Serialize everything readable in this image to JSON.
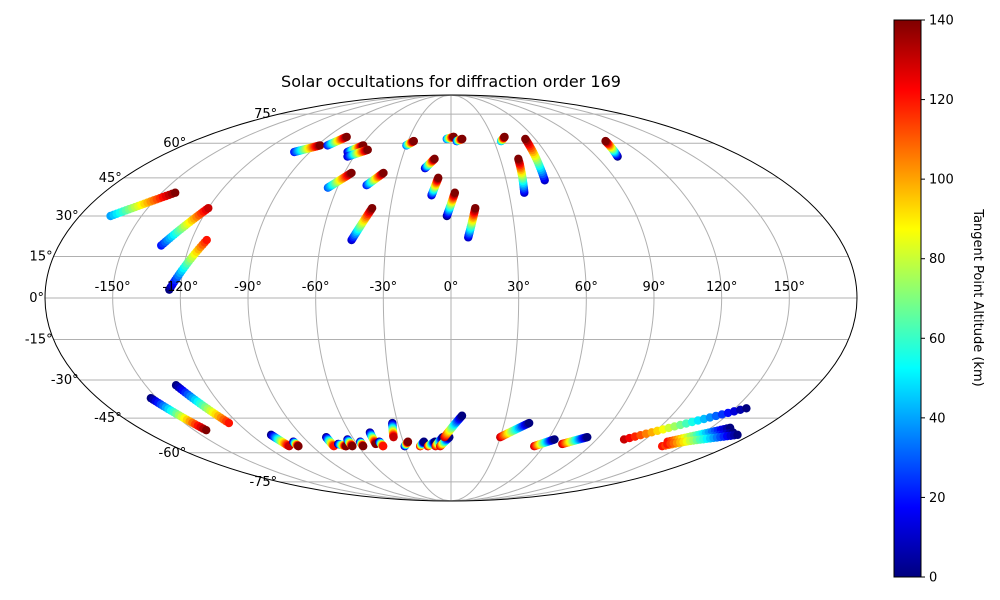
{
  "chart_data": {
    "type": "scatter",
    "projection": "mollweide",
    "title": "Solar occultations for diffraction order 169",
    "longitude_ticks": [
      "-150°",
      "-120°",
      "-90°",
      "-60°",
      "-30°",
      "0°",
      "30°",
      "60°",
      "90°",
      "120°",
      "150°"
    ],
    "latitude_ticks": [
      "75°",
      "60°",
      "45°",
      "30°",
      "15°",
      "0°",
      "-15°",
      "-30°",
      "-45°",
      "-60°",
      "-75°"
    ],
    "grid": true,
    "colorbar": {
      "label": "Tangent Point Altitude (km)",
      "colormap": "jet",
      "min": 0,
      "max": 140,
      "ticks": [
        "0",
        "20",
        "40",
        "60",
        "80",
        "100",
        "120",
        "140"
      ]
    },
    "series": [
      {
        "name": "occultation tracks",
        "tracks": [
          {
            "start": [
              -165,
              30
            ],
            "end": [
              -143,
              39
            ],
            "alt_start": 40,
            "alt_end": 140
          },
          {
            "start": [
              -133,
              19
            ],
            "end": [
              -120,
              33
            ],
            "alt_start": 20,
            "alt_end": 130
          },
          {
            "start": [
              -125,
              3
            ],
            "end": [
              -113,
              21
            ],
            "alt_start": 0,
            "alt_end": 120
          },
          {
            "start": [
              -100,
              56
            ],
            "end": [
              -88,
              59
            ],
            "alt_start": 20,
            "alt_end": 140
          },
          {
            "start": [
              -83,
              59
            ],
            "end": [
              -76,
              63
            ],
            "alt_start": 20,
            "alt_end": 140
          },
          {
            "start": [
              -66,
              56
            ],
            "end": [
              -59,
              59
            ],
            "alt_start": 10,
            "alt_end": 140
          },
          {
            "start": [
              -64,
              54
            ],
            "end": [
              -54,
              57
            ],
            "alt_start": 10,
            "alt_end": 140
          },
          {
            "start": [
              -65,
              41
            ],
            "end": [
              -56,
              47
            ],
            "alt_start": 30,
            "alt_end": 140
          },
          {
            "start": [
              -45,
              42
            ],
            "end": [
              -38,
              47
            ],
            "alt_start": 20,
            "alt_end": 140
          },
          {
            "start": [
              -46,
              21
            ],
            "end": [
              -39,
              33
            ],
            "alt_start": 10,
            "alt_end": 140
          },
          {
            "start": [
              -30,
              59
            ],
            "end": [
              -26,
              61
            ],
            "alt_start": 30,
            "alt_end": 140
          },
          {
            "start": [
              -15,
              49
            ],
            "end": [
              -10,
              53
            ],
            "alt_start": 10,
            "alt_end": 140
          },
          {
            "start": [
              -10,
              38
            ],
            "end": [
              -7,
              45
            ],
            "alt_start": 10,
            "alt_end": 140
          },
          {
            "start": [
              -2,
              30
            ],
            "end": [
              2,
              39
            ],
            "alt_start": 0,
            "alt_end": 140
          },
          {
            "start": [
              -3,
              62
            ],
            "end": [
              2,
              63
            ],
            "alt_start": 30,
            "alt_end": 140
          },
          {
            "start": [
              4,
              61
            ],
            "end": [
              8,
              62
            ],
            "alt_start": 20,
            "alt_end": 140
          },
          {
            "start": [
              8,
              22
            ],
            "end": [
              12,
              33
            ],
            "alt_start": 10,
            "alt_end": 140
          },
          {
            "start": [
              35,
              61
            ],
            "end": [
              39,
              63
            ],
            "alt_start": 40,
            "alt_end": 140
          },
          {
            "start": [
              38,
              39
            ],
            "end": [
              41,
              53
            ],
            "alt_start": 10,
            "alt_end": 140
          },
          {
            "start": [
              51,
              44
            ],
            "end": [
              53,
              62
            ],
            "alt_start": 10,
            "alt_end": 140
          },
          {
            "start": [
              103,
              54
            ],
            "end": [
              108,
              61
            ],
            "alt_start": 0,
            "alt_end": 140
          },
          {
            "start": [
              -153,
              -37
            ],
            "end": [
              -143,
              -50
            ],
            "alt_start": 0,
            "alt_end": 140
          },
          {
            "start": [
              -135,
              -32
            ],
            "end": [
              -125,
              -47
            ],
            "alt_start": 0,
            "alt_end": 120
          },
          {
            "start": [
              -108,
              -52
            ],
            "end": [
              -105,
              -57
            ],
            "alt_start": 0,
            "alt_end": 130
          },
          {
            "start": [
              -99,
              -55
            ],
            "end": [
              -99,
              -57
            ],
            "alt_start": 0,
            "alt_end": 140
          },
          {
            "start": [
              -76,
              -53
            ],
            "end": [
              -76,
              -57
            ],
            "alt_start": 0,
            "alt_end": 120
          },
          {
            "start": [
              -72,
              -56
            ],
            "end": [
              -68,
              -57
            ],
            "alt_start": 0,
            "alt_end": 140
          },
          {
            "start": [
              -64,
              -54
            ],
            "end": [
              -64,
              -57
            ],
            "alt_start": 0,
            "alt_end": 140
          },
          {
            "start": [
              -57,
              -55
            ],
            "end": [
              -57,
              -57
            ],
            "alt_start": 0,
            "alt_end": 140
          },
          {
            "start": [
              -48,
              -51
            ],
            "end": [
              -48,
              -56
            ],
            "alt_start": 0,
            "alt_end": 140
          },
          {
            "start": [
              -45,
              -55
            ],
            "end": [
              -44,
              -57
            ],
            "alt_start": 0,
            "alt_end": 120
          },
          {
            "start": [
              -33,
              -47
            ],
            "end": [
              -35,
              -53
            ],
            "alt_start": 0,
            "alt_end": 130
          },
          {
            "start": [
              -30,
              -57
            ],
            "end": [
              -27,
              -55
            ],
            "alt_start": 0,
            "alt_end": 140
          },
          {
            "start": [
              -20,
              -57
            ],
            "end": [
              -17,
              -55
            ],
            "alt_start": 130,
            "alt_end": 0
          },
          {
            "start": [
              -15,
              -57
            ],
            "end": [
              -10,
              -55
            ],
            "alt_start": 130,
            "alt_end": 0
          },
          {
            "start": [
              -10,
              -57
            ],
            "end": [
              -5,
              -53
            ],
            "alt_start": 130,
            "alt_end": 0
          },
          {
            "start": [
              -7,
              -57
            ],
            "end": [
              -1,
              -53
            ],
            "alt_start": 130,
            "alt_end": 0
          },
          {
            "start": [
              -4,
              -53
            ],
            "end": [
              6,
              -44
            ],
            "alt_start": 130,
            "alt_end": 0
          },
          {
            "start": [
              30,
              -53
            ],
            "end": [
              44,
              -47
            ],
            "alt_start": 130,
            "alt_end": 0
          },
          {
            "start": [
              54,
              -57
            ],
            "end": [
              64,
              -54
            ],
            "alt_start": 130,
            "alt_end": 0
          },
          {
            "start": [
              71,
              -56
            ],
            "end": [
              83,
              -53
            ],
            "alt_start": 130,
            "alt_end": 0
          },
          {
            "start": [
              107,
              -54
            ],
            "end": [
              156,
              -41
            ],
            "alt_start": 130,
            "alt_end": 0
          },
          {
            "start": [
              136,
              -55
            ],
            "end": [
              161,
              -49
            ],
            "alt_start": 120,
            "alt_end": 0
          },
          {
            "start": [
              137,
              -57
            ],
            "end": [
              167,
              -51
            ],
            "alt_start": 120,
            "alt_end": 0
          },
          {
            "start": [
              138,
              -56
            ],
            "end": [
              172,
              -52
            ],
            "alt_start": 120,
            "alt_end": 0
          }
        ]
      }
    ]
  }
}
